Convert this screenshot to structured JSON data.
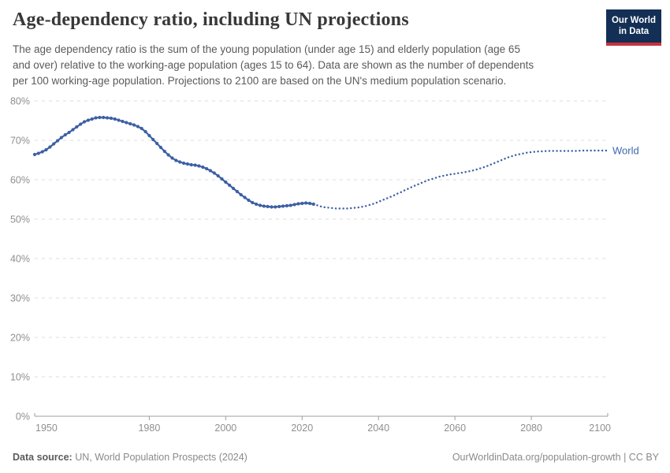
{
  "header": {
    "title": "Age-dependency ratio, including UN projections",
    "subtitle_lines": [
      "The age dependency ratio is the sum of the young population (under age 15) and elderly population (age 65",
      "and over) relative to the working-age population (ages 15 to 64). Data are shown as the number of dependents",
      "per 100 working-age population. Projections to 2100 are based on the UN's medium population scenario."
    ],
    "logo": {
      "line1": "Our World",
      "line2": "in Data",
      "bg_color": "#132f55",
      "bar_color": "#c8313e"
    }
  },
  "chart_data": {
    "type": "line",
    "title": "Age-dependency ratio, including UN projections",
    "xlabel": "",
    "ylabel": "",
    "xlim": [
      1950,
      2100
    ],
    "ylim": [
      0,
      80
    ],
    "grid": "horizontal-dashed",
    "legend_position": "end-of-line",
    "entity_label": "World",
    "entity_label_value": 67.4,
    "x_ticks": [
      1950,
      1980,
      2000,
      2020,
      2040,
      2060,
      2080,
      2100
    ],
    "y_ticks": [
      {
        "value": 0,
        "label": "0%"
      },
      {
        "value": 10,
        "label": "10%"
      },
      {
        "value": 20,
        "label": "20%"
      },
      {
        "value": 30,
        "label": "30%"
      },
      {
        "value": 40,
        "label": "40%"
      },
      {
        "value": 50,
        "label": "50%"
      },
      {
        "value": 60,
        "label": "60%"
      },
      {
        "value": 70,
        "label": "70%"
      },
      {
        "value": 80,
        "label": "80%"
      }
    ],
    "colors": {
      "series": "#3d60a5",
      "label": "#4166ac",
      "grid": "#dcdcdc",
      "axis": "#9e9e9e",
      "tick_text": "#8f8f8f"
    },
    "series": [
      {
        "name": "World (historical)",
        "style": "solid-with-markers",
        "color": "#3d60a5",
        "start_year": 1950,
        "values": [
          66.4,
          66.7,
          67.1,
          67.6,
          68.3,
          69.1,
          69.9,
          70.7,
          71.4,
          72.0,
          72.7,
          73.4,
          74.1,
          74.7,
          75.1,
          75.4,
          75.7,
          75.8,
          75.8,
          75.7,
          75.6,
          75.4,
          75.1,
          74.8,
          74.5,
          74.2,
          73.9,
          73.5,
          73.0,
          72.2,
          71.2,
          70.2,
          69.2,
          68.2,
          67.2,
          66.3,
          65.5,
          64.9,
          64.5,
          64.2,
          64.0,
          63.8,
          63.7,
          63.5,
          63.2,
          62.8,
          62.3,
          61.7,
          61.0,
          60.2,
          59.4,
          58.6,
          57.8,
          57.0,
          56.2,
          55.5,
          54.8,
          54.2,
          53.8,
          53.5,
          53.3,
          53.2,
          53.1,
          53.1,
          53.2,
          53.3,
          53.4,
          53.5,
          53.7,
          53.9,
          54.0,
          54.1,
          54.0,
          53.8
        ]
      },
      {
        "name": "World (UN medium projection)",
        "style": "dotted",
        "color": "#3d60a5",
        "start_year": 2023,
        "values": [
          53.8,
          53.5,
          53.2,
          53.0,
          52.9,
          52.8,
          52.7,
          52.7,
          52.7,
          52.7,
          52.8,
          52.9,
          53.0,
          53.2,
          53.4,
          53.7,
          54.0,
          54.4,
          54.8,
          55.2,
          55.6,
          56.0,
          56.5,
          56.9,
          57.4,
          57.8,
          58.3,
          58.7,
          59.1,
          59.5,
          59.9,
          60.2,
          60.5,
          60.8,
          61.0,
          61.2,
          61.4,
          61.5,
          61.7,
          61.8,
          62.0,
          62.2,
          62.4,
          62.7,
          63.0,
          63.3,
          63.7,
          64.1,
          64.5,
          64.9,
          65.3,
          65.7,
          66.0,
          66.3,
          66.5,
          66.7,
          66.9,
          67.0,
          67.1,
          67.2,
          67.2,
          67.3,
          67.3,
          67.3,
          67.3,
          67.3,
          67.3,
          67.3,
          67.3,
          67.3,
          67.4,
          67.4,
          67.4,
          67.4,
          67.4,
          67.4,
          67.4,
          67.4
        ]
      }
    ]
  },
  "footer": {
    "source_label": "Data source:",
    "source_text": "UN, World Population Prospects (2024)",
    "credit": "OurWorldinData.org/population-growth | CC BY"
  }
}
